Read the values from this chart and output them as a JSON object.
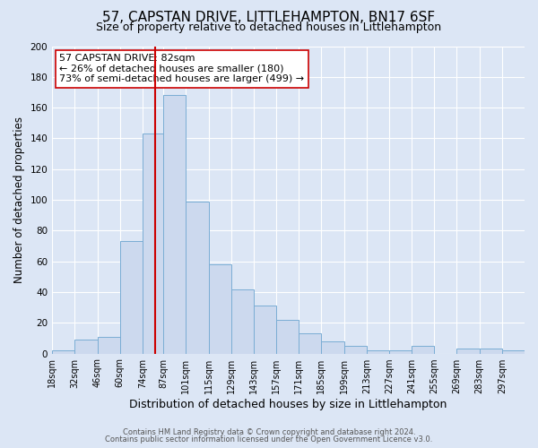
{
  "title": "57, CAPSTAN DRIVE, LITTLEHAMPTON, BN17 6SF",
  "subtitle": "Size of property relative to detached houses in Littlehampton",
  "xlabel": "Distribution of detached houses by size in Littlehampton",
  "ylabel": "Number of detached properties",
  "bin_labels": [
    "18sqm",
    "32sqm",
    "46sqm",
    "60sqm",
    "74sqm",
    "87sqm",
    "101sqm",
    "115sqm",
    "129sqm",
    "143sqm",
    "157sqm",
    "171sqm",
    "185sqm",
    "199sqm",
    "213sqm",
    "227sqm",
    "241sqm",
    "255sqm",
    "269sqm",
    "283sqm",
    "297sqm"
  ],
  "bin_left_edges": [
    18,
    32,
    46,
    60,
    74,
    87,
    101,
    115,
    129,
    143,
    157,
    171,
    185,
    199,
    213,
    227,
    241,
    255,
    269,
    283,
    297
  ],
  "bar_heights": [
    2,
    9,
    11,
    73,
    143,
    168,
    99,
    58,
    42,
    31,
    22,
    13,
    8,
    5,
    2,
    2,
    5,
    0,
    3,
    3,
    2
  ],
  "bar_color": "#ccd9ee",
  "bar_edgecolor": "#7aadd4",
  "vline_x": 82,
  "vline_color": "#cc0000",
  "annotation_line1": "57 CAPSTAN DRIVE: 82sqm",
  "annotation_line2": "← 26% of detached houses are smaller (180)",
  "annotation_line3": "73% of semi-detached houses are larger (499) →",
  "ylim": [
    0,
    200
  ],
  "yticks": [
    0,
    20,
    40,
    60,
    80,
    100,
    120,
    140,
    160,
    180,
    200
  ],
  "background_color": "#dce6f5",
  "plot_background": "#dce6f5",
  "grid_color": "#ffffff",
  "footer_line1": "Contains HM Land Registry data © Crown copyright and database right 2024.",
  "footer_line2": "Contains public sector information licensed under the Open Government Licence v3.0.",
  "title_fontsize": 11,
  "subtitle_fontsize": 9,
  "xlabel_fontsize": 9,
  "ylabel_fontsize": 8.5,
  "annot_fontsize": 8,
  "footer_fontsize": 6,
  "tick_fontsize": 7,
  "ytick_fontsize": 7.5
}
